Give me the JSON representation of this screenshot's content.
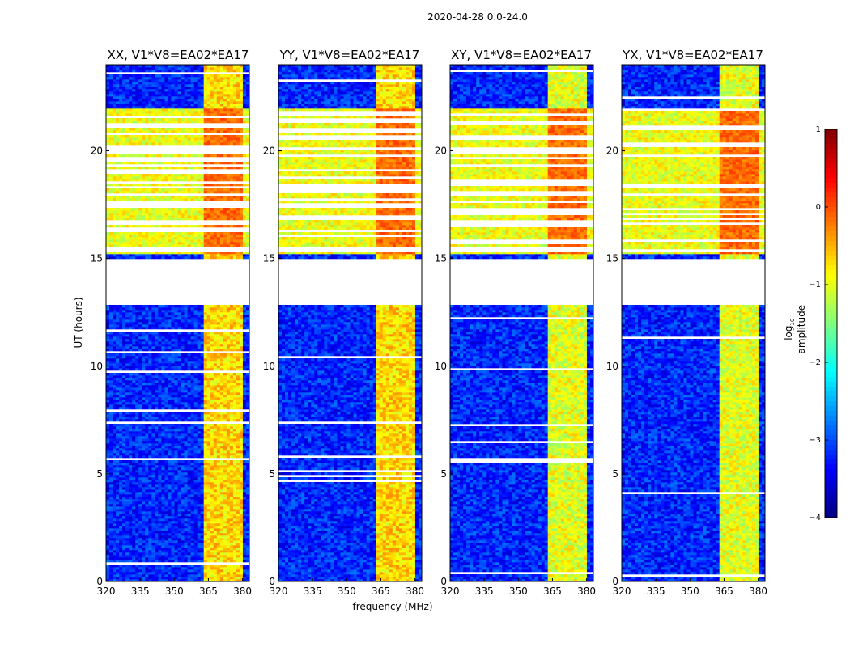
{
  "chart_data": {
    "type": "heatmap",
    "suptitle": "2020-04-28 0.0-24.0",
    "xlabel": "frequency (MHz)",
    "ylabel": "UT (hours)",
    "xlim": [
      320,
      383
    ],
    "ylim": [
      0,
      24
    ],
    "xticks": [
      320,
      335,
      350,
      365,
      380
    ],
    "yticks": [
      0,
      5,
      10,
      15,
      20
    ],
    "panels": [
      {
        "title": "XX, V1*V8=EA02*EA17",
        "pol": "XX"
      },
      {
        "title": "YY, V1*V8=EA02*EA17",
        "pol": "YY"
      },
      {
        "title": "XY, V1*V8=EA02*EA17",
        "pol": "XY"
      },
      {
        "title": "YX, V1*V8=EA02*EA17",
        "pol": "YX"
      }
    ],
    "colorbar": {
      "label_prefix": "log",
      "label_sub": "10",
      "label_suffix": " amplitude",
      "range": [
        -4,
        1
      ],
      "ticks": [
        1,
        0,
        -1,
        -2,
        -3,
        -4
      ],
      "tick_labels": [
        "1",
        "0",
        "−1",
        "−2",
        "−3",
        "−4"
      ],
      "colormap": "jet"
    },
    "data_features": {
      "flagged_gap_hours": [
        12.8,
        15.0
      ],
      "rfi_band_mhz": [
        363,
        380
      ],
      "background_log_amp": -3.2,
      "rfi_log_amp": -0.5,
      "saturated_hours": [
        15.2,
        22.0
      ]
    }
  }
}
